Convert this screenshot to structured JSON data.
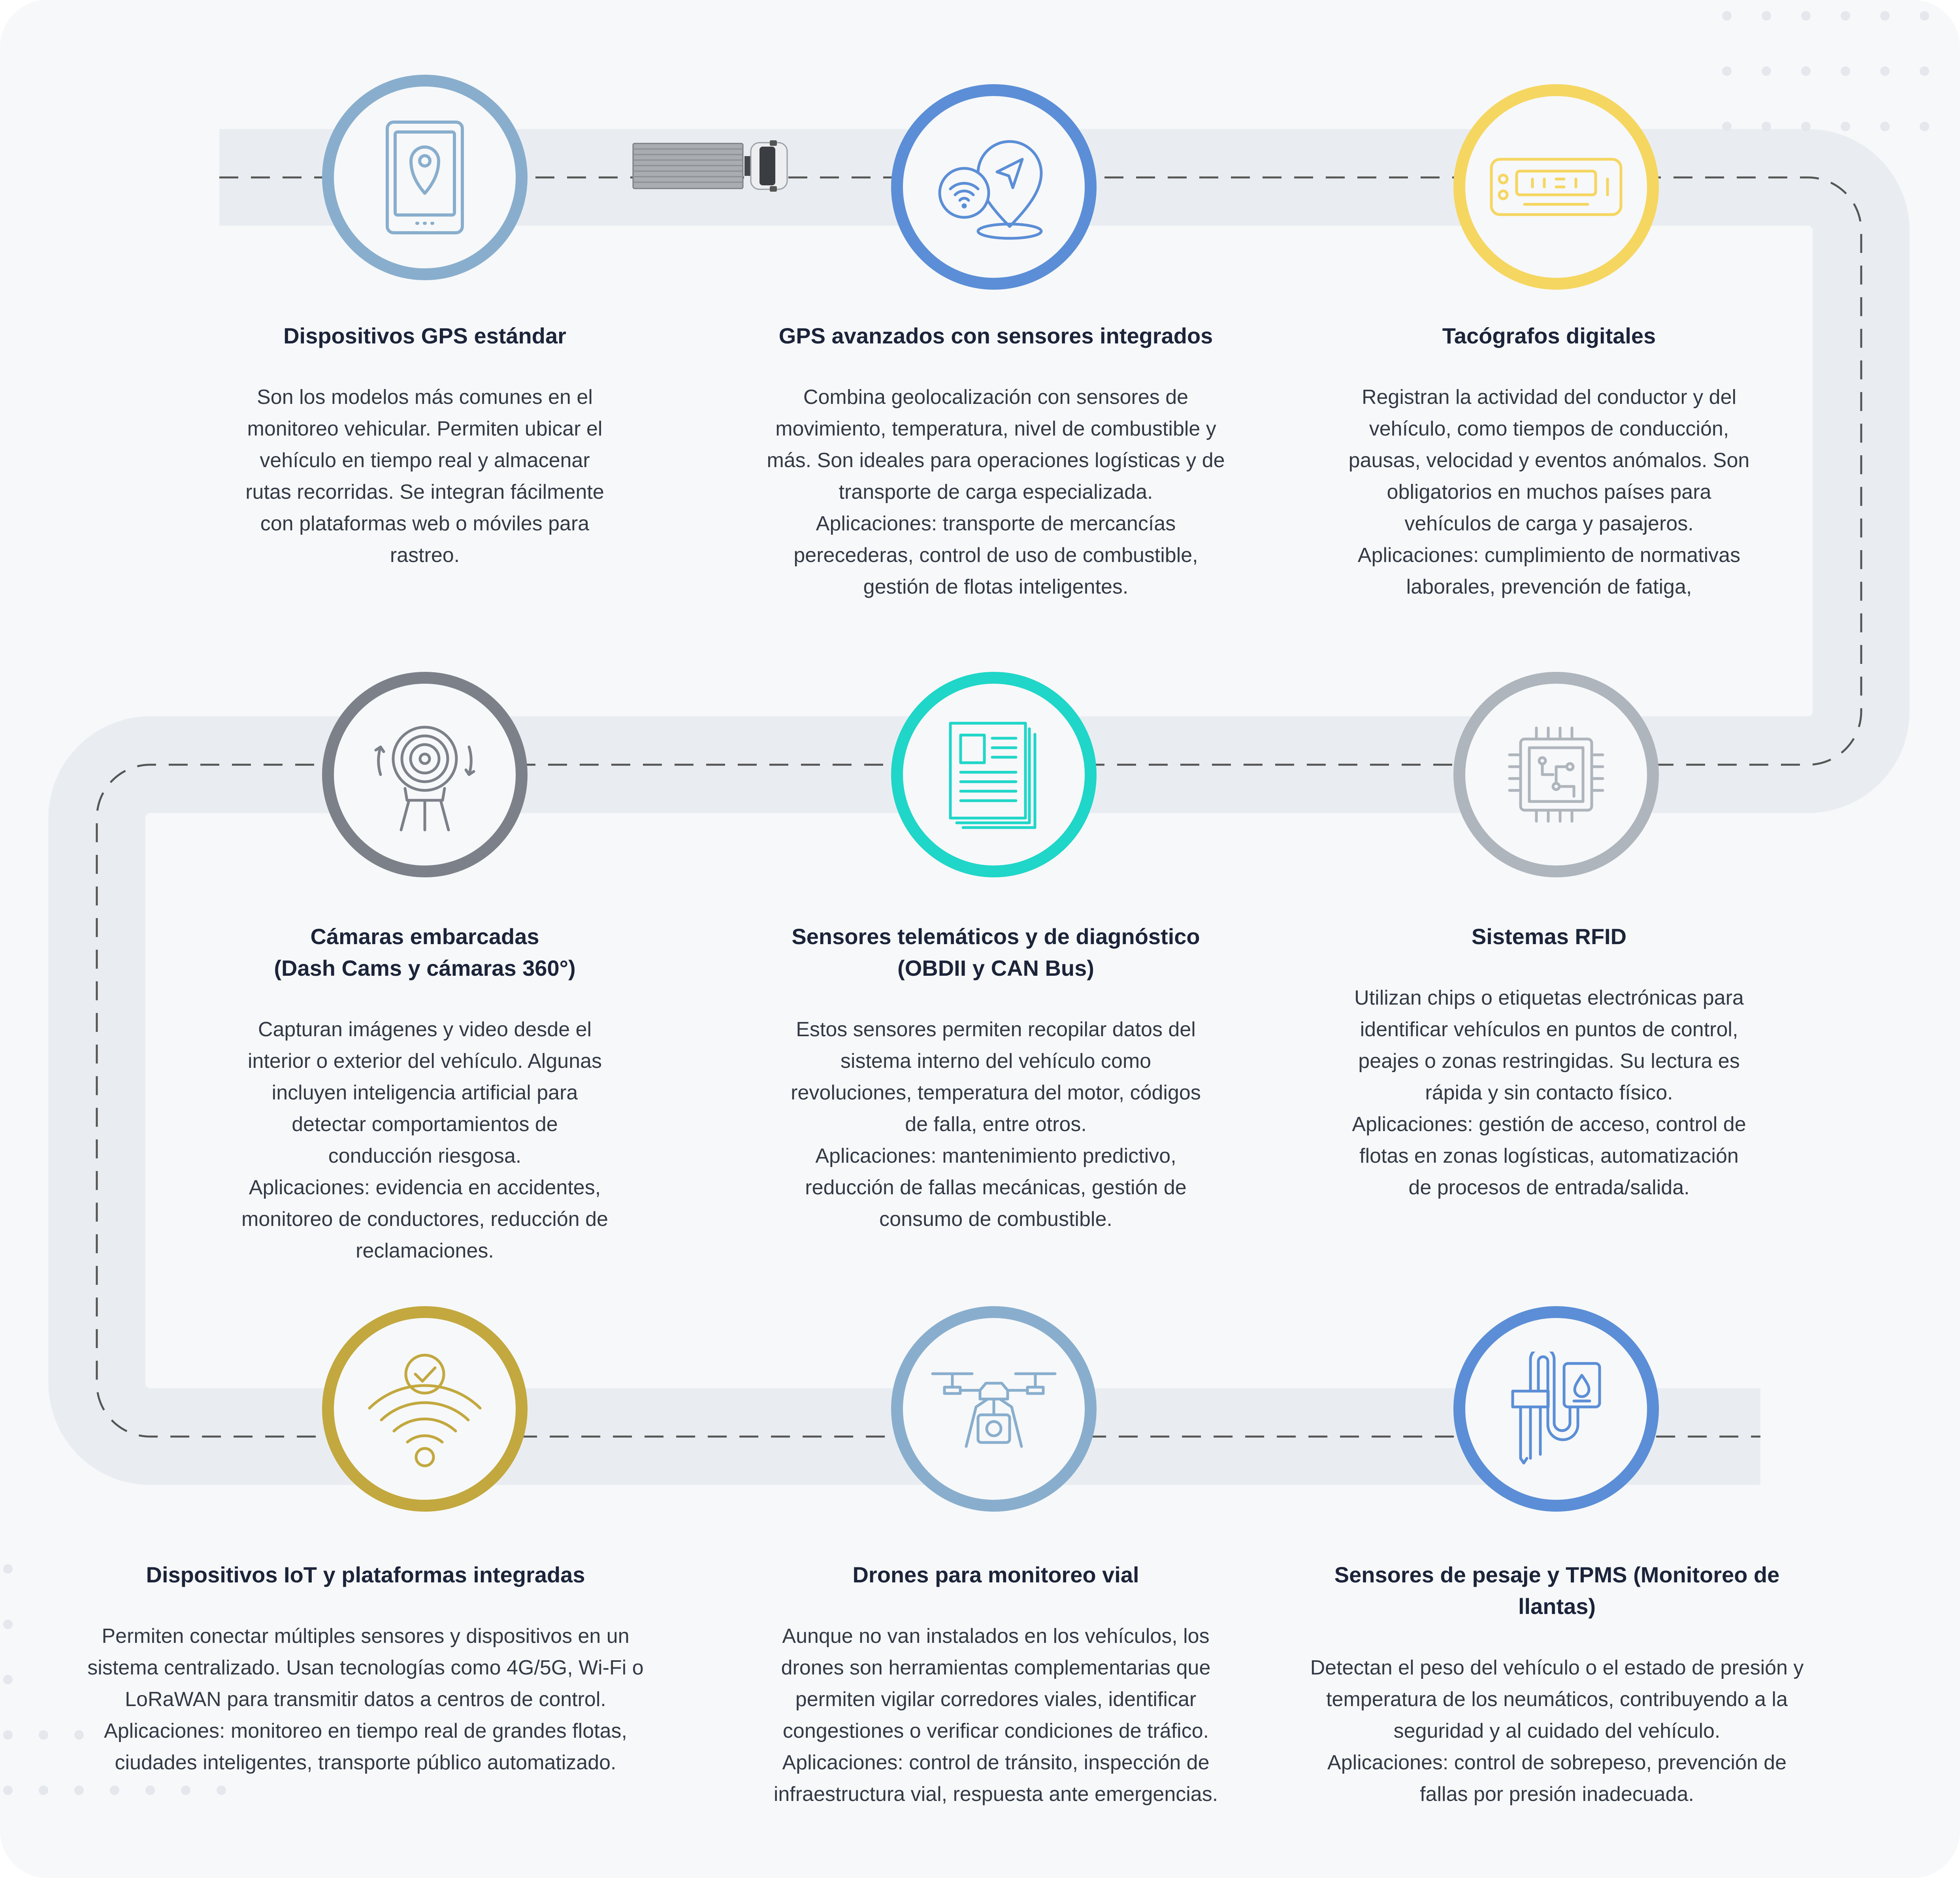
{
  "colors": {
    "background": "#f7f8fa",
    "road": "#e9edf1",
    "dash": "#555555",
    "title": "#1b2439",
    "body": "#333a45"
  },
  "steps": [
    {
      "title": "Dispositivos GPS estándar",
      "text": "Son los modelos más comunes en el\nmonitoreo vehicular. Permiten ubicar el\nvehículo en tiempo real y almacenar\nrutas recorridas. Se integran fácilmente\ncon plataformas web o móviles para\nrastreo.",
      "icon": "smartphone-location-icon",
      "color": "#89aecd"
    },
    {
      "title": "GPS avanzados con sensores integrados",
      "text": "Combina geolocalización con sensores de\nmovimiento, temperatura, nivel de combustible y\nmás. Son ideales para operaciones logísticas y de\ntransporte de carga especializada.\nAplicaciones: transporte de mercancías\nperecederas, control de uso de combustible,\ngestión de flotas inteligentes.",
      "icon": "navigation-wifi-pin-icon",
      "color": "#5b8ed6"
    },
    {
      "title": "Tacógrafos digitales",
      "text": "Registran la actividad del conductor y del\nvehículo, como tiempos de conducción,\npausas, velocidad y eventos anómalos. Son\nobligatorios en muchos países para\nvehículos de carga y pasajeros.\nAplicaciones: cumplimiento de normativas\nlaborales, prevención de fatiga,",
      "icon": "tachograph-icon",
      "color": "#f5d660"
    },
    {
      "title": "Cámaras embarcadas\n(Dash Cams y cámaras 360°)",
      "text": "Capturan imágenes y video desde el\ninterior o exterior del vehículo. Algunas\nincluyen inteligencia artificial para\ndetectar comportamientos de\nconducción riesgosa.\nAplicaciones: evidencia en accidentes,\nmonitoreo de conductores, reducción de\nreclamaciones.",
      "icon": "camera-360-icon",
      "color": "#7c8189"
    },
    {
      "title": "Sensores telemáticos y de diagnóstico\n(OBDII y CAN Bus)",
      "text": "Estos sensores permiten recopilar datos del\nsistema interno del vehículo como\nrevoluciones, temperatura del motor, códigos\nde falla, entre otros.\nAplicaciones: mantenimiento predictivo,\nreducción de fallas mecánicas, gestión de\nconsumo de combustible.",
      "icon": "report-documents-icon",
      "color": "#1fd6c8"
    },
    {
      "title": "Sistemas RFID",
      "text": "Utilizan chips o etiquetas electrónicas para\nidentificar vehículos en puntos de control,\npeajes o zonas restringidas. Su lectura es\nrápida y sin contacto físico.\nAplicaciones: gestión de acceso, control de\nflotas en zonas logísticas, automatización\nde procesos de entrada/salida.",
      "icon": "chip-icon",
      "color": "#aeb5bc"
    },
    {
      "title": "Dispositivos IoT y plataformas integradas",
      "text": "Permiten conectar múltiples sensores y dispositivos en un\nsistema centralizado. Usan tecnologías como 4G/5G, Wi-Fi o\nLoRaWAN para transmitir datos a centros de control.\nAplicaciones: monitoreo en tiempo real de grandes flotas,\nciudades inteligentes, transporte público automatizado.",
      "icon": "wifi-check-icon",
      "color": "#c2a83e"
    },
    {
      "title": "Drones para monitoreo vial",
      "text": "Aunque no van instalados en los vehículos, los\ndrones son herramientas complementarias que\npermiten vigilar corredores viales, identificar\ncongestiones o verificar condiciones de tráfico.\nAplicaciones: control de tránsito, inspección de\ninfraestructura vial, respuesta ante emergencias.",
      "icon": "drone-icon",
      "color": "#89aecd"
    },
    {
      "title": "Sensores de pesaje y TPMS (Monitoreo de\nllantas)",
      "text": "Detectan el peso del vehículo o el estado de presión y\ntemperatura de los neumáticos, contribuyendo a la\nseguridad y al cuidado del vehículo.\nAplicaciones: control de sobrepeso, prevención de\nfallas por presión inadecuada.",
      "icon": "pressure-sensor-icon",
      "color": "#5b8ed6"
    }
  ]
}
